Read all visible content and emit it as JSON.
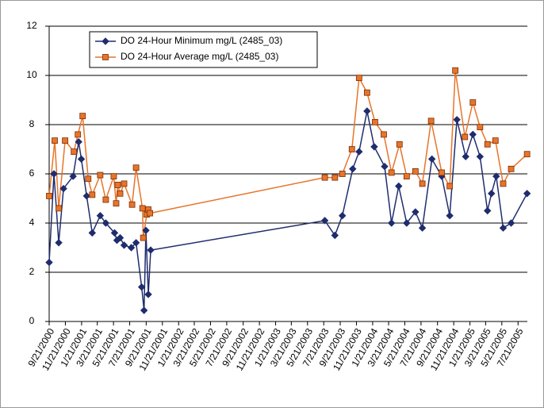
{
  "chart_data": {
    "type": "line",
    "xlim": [
      "9/21/2000",
      "8/25/2005"
    ],
    "xticks": [
      "9/21/2000",
      "11/21/2000",
      "1/21/2001",
      "3/21/2001",
      "5/21/2001",
      "7/21/2001",
      "9/21/2001",
      "11/21/2001",
      "1/21/2002",
      "3/21/2002",
      "5/21/2002",
      "7/21/2002",
      "9/21/2002",
      "11/21/2002",
      "1/21/2003",
      "3/21/2003",
      "5/21/2003",
      "7/21/2003",
      "9/21/2003",
      "11/21/2003",
      "1/21/2004",
      "3/21/2004",
      "5/21/2004",
      "7/21/2004",
      "9/21/2004",
      "11/21/2004",
      "1/21/2005",
      "3/21/2005",
      "5/21/2005",
      "7/21/2005"
    ],
    "ylim": [
      0,
      12
    ],
    "yticks": [
      0,
      2,
      4,
      6,
      8,
      10,
      12
    ],
    "grid": true,
    "series": [
      {
        "name": "DO 24-Hour Minimum mg/L (2485_03)",
        "color": "#1f2d6e",
        "marker": "diamond",
        "x": [
          "9/21/2000",
          "10/9/2000",
          "10/27/2000",
          "11/14/2000",
          "12/20/2000",
          "1/10/2001",
          "1/20/2001",
          "2/9/2001",
          "3/2/2001",
          "4/1/2001",
          "4/22/2001",
          "5/25/2001",
          "6/3/2001",
          "6/15/2001",
          "6/30/2001",
          "7/27/2001",
          "8/14/2001",
          "9/4/2001",
          "9/13/2001",
          "9/20/2001",
          "9/29/2001",
          "10/8/2001",
          "7/25/2003",
          "9/1/2003",
          "9/29/2003",
          "11/7/2003",
          "12/1/2003",
          "12/31/2003",
          "1/27/2004",
          "3/6/2004",
          "4/1/2004",
          "4/28/2004",
          "5/28/2004",
          "6/30/2004",
          "7/26/2004",
          "8/31/2004",
          "10/7/2004",
          "11/6/2004",
          "12/3/2004",
          "1/5/2005",
          "2/1/2005",
          "2/28/2005",
          "3/28/2005",
          "4/12/2005",
          "4/30/2005",
          "5/26/2005",
          "6/25/2005",
          "8/24/2005"
        ],
        "values": [
          2.4,
          6.0,
          3.2,
          5.4,
          5.9,
          7.3,
          6.6,
          5.1,
          3.6,
          4.3,
          4.0,
          3.6,
          3.3,
          3.4,
          3.1,
          3.0,
          3.2,
          1.4,
          0.45,
          3.7,
          1.1,
          2.9,
          4.1,
          3.5,
          4.3,
          6.2,
          6.9,
          8.55,
          7.1,
          6.3,
          4.0,
          5.5,
          4.0,
          4.45,
          3.8,
          6.6,
          5.9,
          4.3,
          8.2,
          6.7,
          7.6,
          6.7,
          4.5,
          5.2,
          5.9,
          3.8,
          4.0,
          5.2
        ]
      },
      {
        "name": "DO 24-Hour Average mg/L (2485_03)",
        "color": "#e8742a",
        "marker": "square",
        "x": [
          "9/21/2000",
          "10/12/2000",
          "10/27/2000",
          "11/20/2000",
          "12/23/2000",
          "1/7/2001",
          "1/25/2001",
          "2/15/2001",
          "3/2/2001",
          "4/1/2001",
          "4/22/2001",
          "5/22/2001",
          "5/31/2001",
          "6/6/2001",
          "6/15/2001",
          "6/30/2001",
          "7/30/2001",
          "8/14/2001",
          "9/7/2001",
          "9/10/2001",
          "9/23/2001",
          "9/29/2001",
          "10/5/2001",
          "7/25/2003",
          "9/1/2003",
          "9/29/2003",
          "11/4/2003",
          "12/1/2003",
          "12/31/2003",
          "1/30/2004",
          "3/3/2004",
          "4/1/2004",
          "5/1/2004",
          "5/28/2004",
          "6/30/2004",
          "7/26/2004",
          "8/28/2004",
          "10/7/2004",
          "11/6/2004",
          "11/27/2004",
          "1/2/2005",
          "2/1/2005",
          "2/28/2005",
          "3/28/2005",
          "4/27/2005",
          "5/26/2005",
          "6/25/2005",
          "8/24/2005"
        ],
        "values": [
          5.1,
          7.35,
          4.6,
          7.35,
          6.9,
          7.6,
          8.35,
          5.8,
          5.15,
          5.95,
          4.95,
          5.9,
          4.8,
          5.55,
          5.2,
          5.6,
          4.75,
          6.25,
          4.6,
          3.4,
          4.35,
          4.55,
          4.4,
          5.85,
          5.85,
          6.0,
          7.0,
          9.9,
          9.3,
          8.1,
          7.6,
          6.05,
          7.2,
          5.9,
          6.1,
          5.6,
          8.15,
          6.05,
          5.5,
          10.2,
          7.5,
          8.9,
          7.9,
          7.2,
          7.35,
          5.6,
          6.2,
          6.8
        ]
      }
    ]
  }
}
